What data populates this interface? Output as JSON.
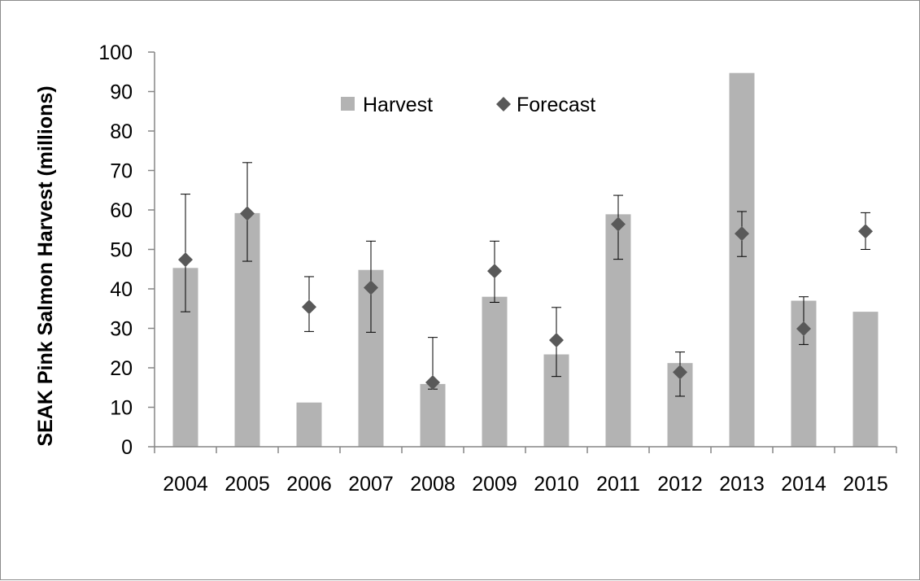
{
  "chart_data": {
    "type": "bar",
    "title": "",
    "xlabel": "",
    "ylabel": "SEAK Pink Salmon Harvest (millions)",
    "ylim": [
      0,
      100
    ],
    "yticks": [
      "0",
      "10",
      "20",
      "30",
      "40",
      "50",
      "60",
      "70",
      "80",
      "90",
      "100"
    ],
    "grid": false,
    "legend_position": "top-center",
    "categories": [
      "2004",
      "2005",
      "2006",
      "2007",
      "2008",
      "2009",
      "2010",
      "2011",
      "2012",
      "2013",
      "2014",
      "2015"
    ],
    "series": [
      {
        "name": "Harvest",
        "type": "bar",
        "color": "#b3b3b3",
        "values": [
          45.3,
          59.2,
          11.2,
          44.8,
          15.9,
          38.0,
          23.4,
          58.9,
          21.2,
          94.7,
          37.0,
          34.2
        ]
      },
      {
        "name": "Forecast",
        "type": "scatter",
        "marker": "diamond",
        "color": "#595959",
        "values": [
          47.4,
          59.1,
          35.4,
          40.3,
          16.3,
          44.5,
          27.0,
          56.4,
          18.9,
          54.0,
          29.9,
          54.6
        ],
        "error_low": [
          34.2,
          47.0,
          29.2,
          29.0,
          14.6,
          36.6,
          17.8,
          47.5,
          12.8,
          48.2,
          25.9,
          50.0
        ],
        "error_high": [
          64.0,
          72.0,
          43.1,
          52.1,
          27.7,
          52.1,
          35.3,
          63.7,
          24.0,
          59.6,
          38.0,
          59.3
        ]
      }
    ]
  }
}
